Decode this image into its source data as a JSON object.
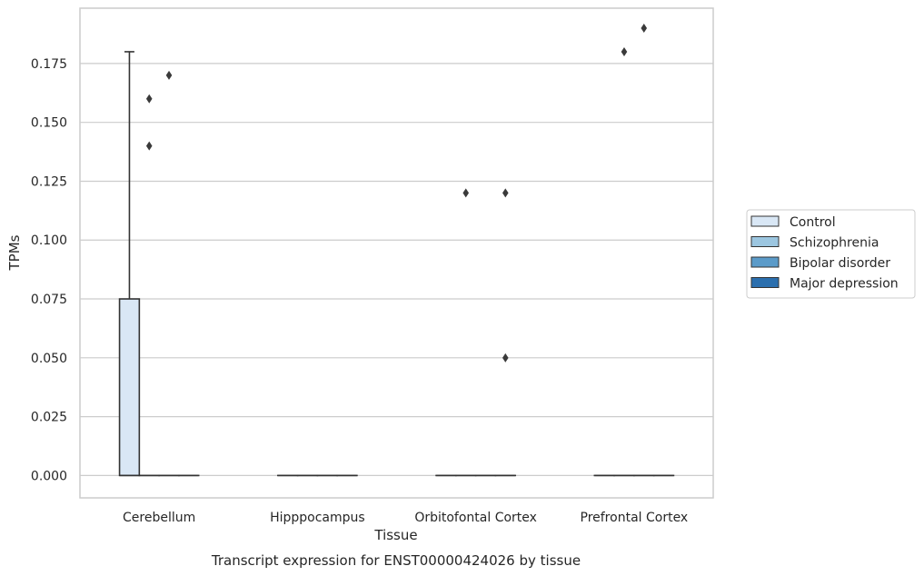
{
  "chart_data": {
    "type": "box",
    "title": "",
    "caption": "Transcript expression for ENST00000424026 by tissue",
    "xlabel": "Tissue",
    "ylabel": "TPMs",
    "ylim": [
      -0.0095,
      0.1985
    ],
    "yticks": [
      0,
      0.025,
      0.05,
      0.075,
      0.1,
      0.125,
      0.15,
      0.175
    ],
    "ytick_labels": [
      "0.000",
      "0.025",
      "0.050",
      "0.075",
      "0.100",
      "0.125",
      "0.150",
      "0.175"
    ],
    "grid": true,
    "categories": [
      "Cerebellum",
      "Hipppocampus",
      "Orbitofontal Cortex",
      "Prefrontal Cortex"
    ],
    "legend": {
      "placement": "right",
      "entries": [
        "Control",
        "Schizophrenia",
        "Bipolar disorder",
        "Major depression"
      ]
    },
    "series": [
      {
        "name": "Control",
        "color": "#d9e7f5",
        "boxes": [
          {
            "q1": 0,
            "median": 0,
            "q3": 0.075,
            "whisker_low": 0,
            "whisker_high": 0.18,
            "outliers": []
          },
          {
            "q1": 0,
            "median": 0,
            "q3": 0,
            "whisker_low": 0,
            "whisker_high": 0,
            "outliers": []
          },
          {
            "q1": 0,
            "median": 0,
            "q3": 0,
            "whisker_low": 0,
            "whisker_high": 0,
            "outliers": []
          },
          {
            "q1": 0,
            "median": 0,
            "q3": 0,
            "whisker_low": 0,
            "whisker_high": 0,
            "outliers": []
          }
        ]
      },
      {
        "name": "Schizophrenia",
        "color": "#9cc6e0",
        "boxes": [
          {
            "q1": 0,
            "median": 0,
            "q3": 0,
            "whisker_low": 0,
            "whisker_high": 0,
            "outliers": [
              0.14,
              0.16
            ]
          },
          {
            "q1": 0,
            "median": 0,
            "q3": 0,
            "whisker_low": 0,
            "whisker_high": 0,
            "outliers": []
          },
          {
            "q1": 0,
            "median": 0,
            "q3": 0,
            "whisker_low": 0,
            "whisker_high": 0,
            "outliers": [
              0.12
            ]
          },
          {
            "q1": 0,
            "median": 0,
            "q3": 0,
            "whisker_low": 0,
            "whisker_high": 0,
            "outliers": [
              0.18
            ]
          }
        ]
      },
      {
        "name": "Bipolar disorder",
        "color": "#5b9bc9",
        "boxes": [
          {
            "q1": 0,
            "median": 0,
            "q3": 0,
            "whisker_low": 0,
            "whisker_high": 0,
            "outliers": [
              0.17
            ]
          },
          {
            "q1": 0,
            "median": 0,
            "q3": 0,
            "whisker_low": 0,
            "whisker_high": 0,
            "outliers": []
          },
          {
            "q1": 0,
            "median": 0,
            "q3": 0,
            "whisker_low": 0,
            "whisker_high": 0,
            "outliers": []
          },
          {
            "q1": 0,
            "median": 0,
            "q3": 0,
            "whisker_low": 0,
            "whisker_high": 0,
            "outliers": [
              0.19
            ]
          }
        ]
      },
      {
        "name": "Major depression",
        "color": "#2b6fae",
        "boxes": [
          {
            "q1": 0,
            "median": 0,
            "q3": 0,
            "whisker_low": 0,
            "whisker_high": 0,
            "outliers": []
          },
          {
            "q1": 0,
            "median": 0,
            "q3": 0,
            "whisker_low": 0,
            "whisker_high": 0,
            "outliers": []
          },
          {
            "q1": 0,
            "median": 0,
            "q3": 0,
            "whisker_low": 0,
            "whisker_high": 0,
            "outliers": [
              0.12,
              0.05
            ]
          },
          {
            "q1": 0,
            "median": 0,
            "q3": 0,
            "whisker_low": 0,
            "whisker_high": 0,
            "outliers": []
          }
        ]
      }
    ]
  }
}
